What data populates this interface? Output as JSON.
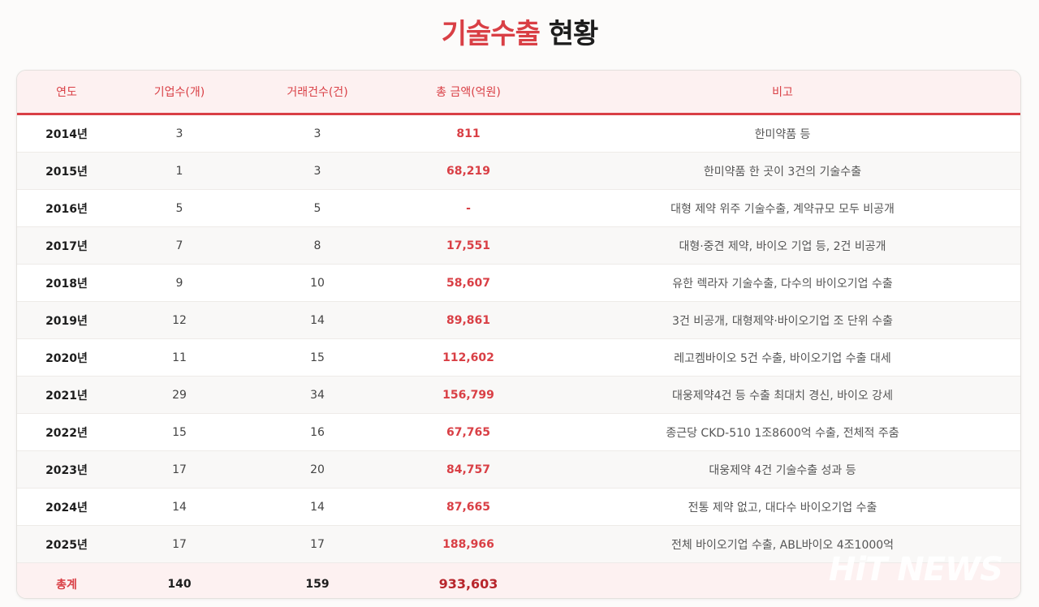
{
  "title": {
    "accent": "기술수출",
    "rest": "현황"
  },
  "table": {
    "headers": [
      "연도",
      "기업수(개)",
      "거래건수(건)",
      "총 금액(억원)",
      "비고"
    ],
    "rows": [
      {
        "year": "2014년",
        "companies": "3",
        "deals": "3",
        "amount": "811",
        "note": "한미약품 등"
      },
      {
        "year": "2015년",
        "companies": "1",
        "deals": "3",
        "amount": "68,219",
        "note": "한미약품 한 곳이 3건의 기술수출"
      },
      {
        "year": "2016년",
        "companies": "5",
        "deals": "5",
        "amount": "-",
        "note": "대형 제약 위주 기술수출, 계약규모 모두 비공개"
      },
      {
        "year": "2017년",
        "companies": "7",
        "deals": "8",
        "amount": "17,551",
        "note": "대형·중견 제약, 바이오 기업 등, 2건 비공개"
      },
      {
        "year": "2018년",
        "companies": "9",
        "deals": "10",
        "amount": "58,607",
        "note": "유한 렉라자 기술수출, 다수의 바이오기업 수출"
      },
      {
        "year": "2019년",
        "companies": "12",
        "deals": "14",
        "amount": "89,861",
        "note": "3건 비공개, 대형제약·바이오기업 조 단위 수출"
      },
      {
        "year": "2020년",
        "companies": "11",
        "deals": "15",
        "amount": "112,602",
        "note": "레고켐바이오 5건 수출, 바이오기업 수출 대세"
      },
      {
        "year": "2021년",
        "companies": "29",
        "deals": "34",
        "amount": "156,799",
        "note": "대웅제약4건 등 수출 최대치 경신, 바이오 강세"
      },
      {
        "year": "2022년",
        "companies": "15",
        "deals": "16",
        "amount": "67,765",
        "note": "종근당 CKD-510 1조8600억 수출, 전체적 주춤"
      },
      {
        "year": "2023년",
        "companies": "17",
        "deals": "20",
        "amount": "84,757",
        "note": "대웅제약 4건 기술수출 성과 등"
      },
      {
        "year": "2024년",
        "companies": "14",
        "deals": "14",
        "amount": "87,665",
        "note": "전통 제약 없고, 대다수 바이오기업 수출"
      },
      {
        "year": "2025년",
        "companies": "17",
        "deals": "17",
        "amount": "188,966",
        "note": "전체 바이오기업 수출, ABL바이오 4조1000억"
      }
    ],
    "total": {
      "label": "총계",
      "companies": "140",
      "deals": "159",
      "amount": "933,603",
      "note": ""
    }
  },
  "watermark": "HiT NEWS",
  "colors": {
    "accent": "#d93f45",
    "header_bg": "#fdf1f1"
  }
}
